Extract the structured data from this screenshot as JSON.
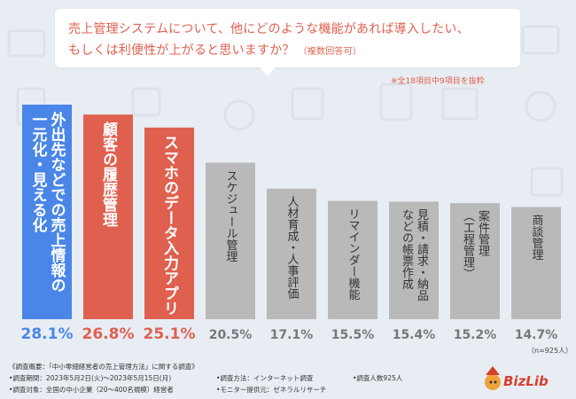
{
  "question": {
    "line1": "売上管理システムについて、他にどのような機能があれば導入したい、",
    "line2": "もしくは利便性が上がると思いますか？",
    "sub": "（複数回答可）"
  },
  "note": "※全18項目中9項目を抜粋",
  "n_label": "（n=925人）",
  "chart_data": {
    "type": "bar",
    "categories": [
      "外出先などでの売上情報の一元化・見える化",
      "顧客の履歴管理",
      "スマホのデータ入力アプリ",
      "スケジュール管理",
      "人材育成・人事評価",
      "リマインダー機能",
      "見積・請求・納品などの帳票作成",
      "案件管理（工程管理）",
      "商談管理"
    ],
    "category_lines": [
      [
        "外出先などでの売上情報の",
        "一元化・見える化"
      ],
      [
        "顧客の履歴管理"
      ],
      [
        "スマホのデータ入力アプリ"
      ],
      [
        "スケジュール管理"
      ],
      [
        "人材育成・人事評価"
      ],
      [
        "リマインダー機能"
      ],
      [
        "見積・請求・納品",
        "などの帳票作成"
      ],
      [
        "案件管理",
        "（工程管理）"
      ],
      [
        "商談管理"
      ]
    ],
    "values": [
      28.1,
      26.8,
      25.1,
      20.5,
      17.1,
      15.5,
      15.4,
      15.2,
      14.7
    ],
    "value_labels": [
      "28.1%",
      "26.8%",
      "25.1%",
      "20.5%",
      "17.1%",
      "15.5%",
      "15.4%",
      "15.2%",
      "14.7%"
    ],
    "colors": [
      "#4a86e8",
      "#e0604f",
      "#e0604f",
      "#b9b9b9",
      "#b9b9b9",
      "#b9b9b9",
      "#b9b9b9",
      "#b9b9b9",
      "#b9b9b9"
    ],
    "label_colors": [
      "#4a86e8",
      "#e0604f",
      "#e0604f",
      "#777777",
      "#777777",
      "#777777",
      "#777777",
      "#777777",
      "#777777"
    ],
    "ylim": [
      0,
      28.1
    ]
  },
  "footer": {
    "survey_title": "《調査概要：「中小零細経営者の売上管理方法」に関する調査》",
    "period": "•調査期間：2023年5月2日(火)～2023年5月15日(月)",
    "target": "•調査対象：全国の中小企業（20～400名規模）経営者",
    "method": "•調査方法：インターネット調査",
    "monitor": "•モニター提供元：ゼネラルリサーチ",
    "count": "•調査人数925人",
    "logo": "BizLib"
  }
}
